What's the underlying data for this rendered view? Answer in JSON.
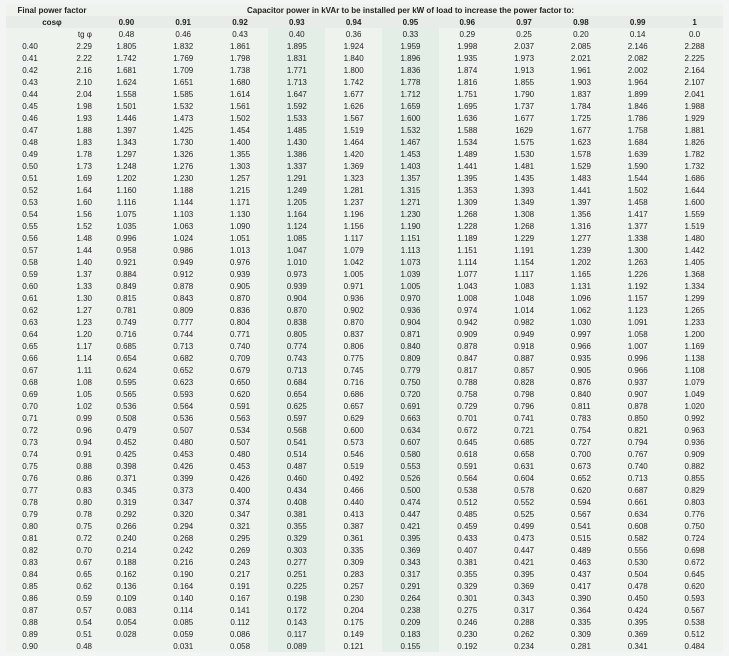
{
  "title_left": "Final power factor",
  "title_main": "Capacitor power in kVAr to be installed per kW of load to increase the power factor to:",
  "cosphi_label": "cosφ",
  "tgphi_label": "tg φ",
  "targets": [
    "0.90",
    "0.91",
    "0.92",
    "0.93",
    "0.94",
    "0.95",
    "0.96",
    "0.97",
    "0.98",
    "0.99",
    "1"
  ],
  "grid_color": "#e0e0e0",
  "background_color": "#f3f5f4",
  "shade_a": "#eef3ee",
  "shade_b": "#e3eee6",
  "font_size_pt": 6,
  "header_font_weight": "bold",
  "rows": [
    {
      "cosphi": "",
      "tgphi": "",
      "v": [
        "0.48",
        "0.46",
        "0.43",
        "0.40",
        "0.36",
        "0.33",
        "0.29",
        "0.25",
        "0.20",
        "0.14",
        "0.0"
      ]
    },
    {
      "cosphi": "0.40",
      "tgphi": "2.29",
      "v": [
        "1.805",
        "1.832",
        "1.861",
        "1.895",
        "1.924",
        "1.959",
        "1.998",
        "2.037",
        "2.085",
        "2.146",
        "2.288"
      ]
    },
    {
      "cosphi": "0.41",
      "tgphi": "2.22",
      "v": [
        "1.742",
        "1.769",
        "1.798",
        "1.831",
        "1.840",
        "1.896",
        "1.935",
        "1.973",
        "2.021",
        "2.082",
        "2.225"
      ]
    },
    {
      "cosphi": "0.42",
      "tgphi": "2.16",
      "v": [
        "1.681",
        "1.709",
        "1.738",
        "1.771",
        "1.800",
        "1.836",
        "1.874",
        "1.913",
        "1.961",
        "2.002",
        "2.164"
      ]
    },
    {
      "cosphi": "0.43",
      "tgphi": "2.10",
      "v": [
        "1.624",
        "1.651",
        "1.680",
        "1.713",
        "1.742",
        "1.778",
        "1.816",
        "1.855",
        "1.903",
        "1.964",
        "2.107"
      ]
    },
    {
      "cosphi": "0.44",
      "tgphi": "2.04",
      "v": [
        "1.558",
        "1.585",
        "1.614",
        "1.647",
        "1.677",
        "1.712",
        "1.751",
        "1.790",
        "1.837",
        "1.899",
        "2.041"
      ]
    },
    {
      "cosphi": "0.45",
      "tgphi": "1.98",
      "v": [
        "1.501",
        "1.532",
        "1.561",
        "1.592",
        "1.626",
        "1.659",
        "1.695",
        "1.737",
        "1.784",
        "1.846",
        "1.988"
      ]
    },
    {
      "cosphi": "0.46",
      "tgphi": "1.93",
      "v": [
        "1.446",
        "1.473",
        "1.502",
        "1.533",
        "1.567",
        "1.600",
        "1.636",
        "1.677",
        "1.725",
        "1.786",
        "1.929"
      ]
    },
    {
      "cosphi": "0.47",
      "tgphi": "1.88",
      "v": [
        "1.397",
        "1.425",
        "1.454",
        "1.485",
        "1.519",
        "1.532",
        "1.588",
        "1629",
        "1.677",
        "1.758",
        "1.881"
      ]
    },
    {
      "cosphi": "0.48",
      "tgphi": "1.83",
      "v": [
        "1.343",
        "1.730",
        "1.400",
        "1.430",
        "1.464",
        "1.467",
        "1.534",
        "1.575",
        "1.623",
        "1.684",
        "1.826"
      ]
    },
    {
      "cosphi": "0.49",
      "tgphi": "1.78",
      "v": [
        "1.297",
        "1.326",
        "1.355",
        "1.386",
        "1.420",
        "1.453",
        "1.489",
        "1.530",
        "1.578",
        "1.639",
        "1.782"
      ]
    },
    {
      "cosphi": "0.50",
      "tgphi": "1.73",
      "v": [
        "1.248",
        "1.276",
        "1.303",
        "1.337",
        "1.369",
        "1.403",
        "1.441",
        "1.481",
        "1.529",
        "1.590",
        "1.732"
      ]
    },
    {
      "cosphi": "0.51",
      "tgphi": "1.69",
      "v": [
        "1.202",
        "1.230",
        "1.257",
        "1.291",
        "1.323",
        "1.357",
        "1.395",
        "1.435",
        "1.483",
        "1.544",
        "1.686"
      ]
    },
    {
      "cosphi": "0.52",
      "tgphi": "1.64",
      "v": [
        "1.160",
        "1.188",
        "1.215",
        "1.249",
        "1.281",
        "1.315",
        "1.353",
        "1.393",
        "1.441",
        "1.502",
        "1.644"
      ]
    },
    {
      "cosphi": "0.53",
      "tgphi": "1.60",
      "v": [
        "1.116",
        "1.144",
        "1.171",
        "1.205",
        "1.237",
        "1.271",
        "1.309",
        "1.349",
        "1.397",
        "1.458",
        "1.600"
      ]
    },
    {
      "cosphi": "0.54",
      "tgphi": "1.56",
      "v": [
        "1.075",
        "1.103",
        "1.130",
        "1.164",
        "1.196",
        "1.230",
        "1.268",
        "1.308",
        "1.356",
        "1.417",
        "1.559"
      ]
    },
    {
      "cosphi": "0.55",
      "tgphi": "1.52",
      "v": [
        "1.035",
        "1.063",
        "1.090",
        "1.124",
        "1.156",
        "1.190",
        "1.228",
        "1.268",
        "1.316",
        "1.377",
        "1.519"
      ]
    },
    {
      "cosphi": "0.56",
      "tgphi": "1.48",
      "v": [
        "0.996",
        "1.024",
        "1.051",
        "1.085",
        "1.117",
        "1.151",
        "1.189",
        "1.229",
        "1.277",
        "1.338",
        "1.480"
      ]
    },
    {
      "cosphi": "0.57",
      "tgphi": "1.44",
      "v": [
        "0.958",
        "0.986",
        "1.013",
        "1.047",
        "1.079",
        "1.113",
        "1.151",
        "1.191",
        "1.239",
        "1.300",
        "1.442"
      ]
    },
    {
      "cosphi": "0.58",
      "tgphi": "1.40",
      "v": [
        "0.921",
        "0.949",
        "0.976",
        "1.010",
        "1.042",
        "1.073",
        "1.114",
        "1.154",
        "1.202",
        "1.263",
        "1.405"
      ]
    },
    {
      "cosphi": "0.59",
      "tgphi": "1.37",
      "v": [
        "0.884",
        "0.912",
        "0.939",
        "0.973",
        "1.005",
        "1.039",
        "1.077",
        "1.117",
        "1.165",
        "1.226",
        "1.368"
      ]
    },
    {
      "cosphi": "0.60",
      "tgphi": "1.33",
      "v": [
        "0.849",
        "0.878",
        "0.905",
        "0.939",
        "0.971",
        "1.005",
        "1.043",
        "1.083",
        "1.131",
        "1.192",
        "1.334"
      ]
    },
    {
      "cosphi": "0.61",
      "tgphi": "1.30",
      "v": [
        "0.815",
        "0.843",
        "0.870",
        "0.904",
        "0.936",
        "0.970",
        "1.008",
        "1.048",
        "1.096",
        "1.157",
        "1.299"
      ]
    },
    {
      "cosphi": "0.62",
      "tgphi": "1.27",
      "v": [
        "0.781",
        "0.809",
        "0.836",
        "0.870",
        "0.902",
        "0.936",
        "0.974",
        "1.014",
        "1.062",
        "1.123",
        "1.265"
      ]
    },
    {
      "cosphi": "0.63",
      "tgphi": "1.23",
      "v": [
        "0.749",
        "0.777",
        "0.804",
        "0.838",
        "0.870",
        "0.904",
        "0.942",
        "0.982",
        "1.030",
        "1.091",
        "1.233"
      ]
    },
    {
      "cosphi": "0.64",
      "tgphi": "1.20",
      "v": [
        "0.716",
        "0.744",
        "0.771",
        "0.805",
        "0.837",
        "0.871",
        "0.909",
        "0.949",
        "0.997",
        "1.058",
        "1.200"
      ]
    },
    {
      "cosphi": "0.65",
      "tgphi": "1.17",
      "v": [
        "0.685",
        "0.713",
        "0.740",
        "0.774",
        "0.806",
        "0.840",
        "0.878",
        "0.918",
        "0.966",
        "1.007",
        "1.169"
      ]
    },
    {
      "cosphi": "0.66",
      "tgphi": "1.14",
      "v": [
        "0.654",
        "0.682",
        "0.709",
        "0.743",
        "0.775",
        "0.809",
        "0.847",
        "0.887",
        "0.935",
        "0.996",
        "1.138"
      ]
    },
    {
      "cosphi": "0.67",
      "tgphi": "1.11",
      "v": [
        "0.624",
        "0.652",
        "0.679",
        "0.713",
        "0.745",
        "0.779",
        "0.817",
        "0.857",
        "0.905",
        "0.966",
        "1.108"
      ]
    },
    {
      "cosphi": "0.68",
      "tgphi": "1.08",
      "v": [
        "0.595",
        "0.623",
        "0.650",
        "0.684",
        "0.716",
        "0.750",
        "0.788",
        "0.828",
        "0.876",
        "0.937",
        "1.079"
      ]
    },
    {
      "cosphi": "0.69",
      "tgphi": "1.05",
      "v": [
        "0.565",
        "0.593",
        "0.620",
        "0.654",
        "0.686",
        "0.720",
        "0.758",
        "0.798",
        "0.840",
        "0.907",
        "1.049"
      ]
    },
    {
      "cosphi": "0.70",
      "tgphi": "1.02",
      "v": [
        "0.536",
        "0.564",
        "0.591",
        "0.625",
        "0.657",
        "0.691",
        "0.729",
        "0.796",
        "0.811",
        "0.878",
        "1.020"
      ]
    },
    {
      "cosphi": "0.71",
      "tgphi": "0.99",
      "v": [
        "0.508",
        "0.536",
        "0.563",
        "0.597",
        "0.629",
        "0.663",
        "0.701",
        "0.741",
        "0.783",
        "0.850",
        "0.992"
      ]
    },
    {
      "cosphi": "0.72",
      "tgphi": "0.96",
      "v": [
        "0.479",
        "0.507",
        "0.534",
        "0.568",
        "0.600",
        "0.634",
        "0.672",
        "0.721",
        "0.754",
        "0.821",
        "0.963"
      ]
    },
    {
      "cosphi": "0.73",
      "tgphi": "0.94",
      "v": [
        "0.452",
        "0.480",
        "0.507",
        "0.541",
        "0.573",
        "0.607",
        "0.645",
        "0.685",
        "0.727",
        "0.794",
        "0.936"
      ]
    },
    {
      "cosphi": "0.74",
      "tgphi": "0.91",
      "v": [
        "0.425",
        "0.453",
        "0.480",
        "0.514",
        "0.546",
        "0.580",
        "0.618",
        "0.658",
        "0.700",
        "0.767",
        "0.909"
      ]
    },
    {
      "cosphi": "0.75",
      "tgphi": "0.88",
      "v": [
        "0.398",
        "0.426",
        "0.453",
        "0.487",
        "0.519",
        "0.553",
        "0.591",
        "0.631",
        "0.673",
        "0.740",
        "0.882"
      ]
    },
    {
      "cosphi": "0.76",
      "tgphi": "0.86",
      "v": [
        "0.371",
        "0.399",
        "0.426",
        "0.460",
        "0.492",
        "0.526",
        "0.564",
        "0.604",
        "0.652",
        "0.713",
        "0.855"
      ]
    },
    {
      "cosphi": "0.77",
      "tgphi": "0.83",
      "v": [
        "0.345",
        "0.373",
        "0.400",
        "0.434",
        "0.466",
        "0.500",
        "0.538",
        "0.578",
        "0.620",
        "0.687",
        "0.829"
      ]
    },
    {
      "cosphi": "0.78",
      "tgphi": "0.80",
      "v": [
        "0.319",
        "0.347",
        "0.374",
        "0.408",
        "0.440",
        "0.474",
        "0.512",
        "0.552",
        "0.594",
        "0.661",
        "0.803"
      ]
    },
    {
      "cosphi": "0.79",
      "tgphi": "0.78",
      "v": [
        "0.292",
        "0.320",
        "0.347",
        "0.381",
        "0.413",
        "0.447",
        "0.485",
        "0.525",
        "0.567",
        "0.634",
        "0.776"
      ]
    },
    {
      "cosphi": "0.80",
      "tgphi": "0.75",
      "v": [
        "0.266",
        "0.294",
        "0.321",
        "0.355",
        "0.387",
        "0.421",
        "0.459",
        "0.499",
        "0.541",
        "0.608",
        "0.750"
      ]
    },
    {
      "cosphi": "0.81",
      "tgphi": "0.72",
      "v": [
        "0.240",
        "0.268",
        "0.295",
        "0.329",
        "0.361",
        "0.395",
        "0.433",
        "0.473",
        "0.515",
        "0.582",
        "0.724"
      ]
    },
    {
      "cosphi": "0.82",
      "tgphi": "0.70",
      "v": [
        "0.214",
        "0.242",
        "0.269",
        "0.303",
        "0.335",
        "0.369",
        "0.407",
        "0.447",
        "0.489",
        "0.556",
        "0.698"
      ]
    },
    {
      "cosphi": "0.83",
      "tgphi": "0.67",
      "v": [
        "0.188",
        "0.216",
        "0.243",
        "0.277",
        "0.309",
        "0.343",
        "0.381",
        "0.421",
        "0.463",
        "0.530",
        "0.672"
      ]
    },
    {
      "cosphi": "0.84",
      "tgphi": "0.65",
      "v": [
        "0.162",
        "0.190",
        "0.217",
        "0.251",
        "0.283",
        "0.317",
        "0.355",
        "0.395",
        "0.437",
        "0.504",
        "0.645"
      ]
    },
    {
      "cosphi": "0.85",
      "tgphi": "0.62",
      "v": [
        "0.136",
        "0.164",
        "0.191",
        "0.225",
        "0.257",
        "0.291",
        "0.329",
        "0.369",
        "0.417",
        "0.478",
        "0.620"
      ]
    },
    {
      "cosphi": "0.86",
      "tgphi": "0.59",
      "v": [
        "0.109",
        "0.140",
        "0.167",
        "0.198",
        "0.230",
        "0.264",
        "0.301",
        "0.343",
        "0.390",
        "0.450",
        "0.593"
      ]
    },
    {
      "cosphi": "0.87",
      "tgphi": "0.57",
      "v": [
        "0.083",
        "0.114",
        "0.141",
        "0.172",
        "0.204",
        "0.238",
        "0.275",
        "0.317",
        "0.364",
        "0.424",
        "0.567"
      ]
    },
    {
      "cosphi": "0.88",
      "tgphi": "0.54",
      "v": [
        "0.054",
        "0.085",
        "0.112",
        "0.143",
        "0.175",
        "0.209",
        "0.246",
        "0.288",
        "0.335",
        "0.395",
        "0.538"
      ]
    },
    {
      "cosphi": "0.89",
      "tgphi": "0.51",
      "v": [
        "0.028",
        "0.059",
        "0.086",
        "0.117",
        "0.149",
        "0.183",
        "0.230",
        "0.262",
        "0.309",
        "0.369",
        "0.512"
      ]
    },
    {
      "cosphi": "0.90",
      "tgphi": "0.48",
      "v": [
        "",
        "0.031",
        "0.058",
        "0.089",
        "0.121",
        "0.155",
        "0.192",
        "0.234",
        "0.281",
        "0.341",
        "0.484"
      ]
    }
  ],
  "col_shade_pattern": [
    "shA",
    "shA",
    "shA",
    "shB",
    "shA",
    "shB",
    "shA",
    "shA",
    "shA",
    "shA",
    "shA"
  ]
}
